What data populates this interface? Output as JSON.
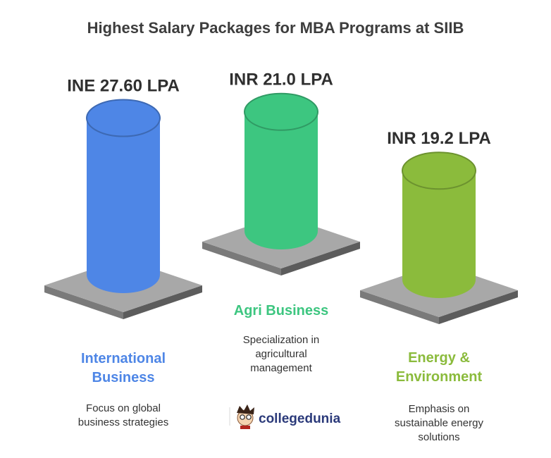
{
  "chart_data": {
    "type": "bar",
    "title": "Highest Salary Packages for MBA Programs at SIIB",
    "categories": [
      "International Business",
      "Agri Business",
      "Energy & Environment"
    ],
    "values": [
      27.6,
      21.0,
      19.2
    ],
    "value_labels": [
      "INE 27.60 LPA",
      "INR 21.0 LPA",
      "INR 19.2 LPA"
    ],
    "category_lines": [
      [
        "International",
        "Business"
      ],
      [
        "Agri Business"
      ],
      [
        "Energy &",
        "Environment"
      ]
    ],
    "descriptions": [
      [
        "Focus on global",
        "business strategies"
      ],
      [
        "Specialization in",
        "agricultural",
        "management"
      ],
      [
        "Emphasis on",
        "sustainable energy",
        "solutions"
      ]
    ],
    "colors": [
      "#4e86e6",
      "#3dc680",
      "#8bbb3c"
    ],
    "unit": "LPA"
  },
  "branding": {
    "logo_text": "collegedunia"
  }
}
